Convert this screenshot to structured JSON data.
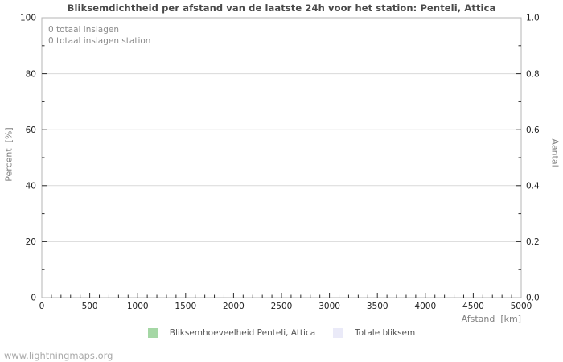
{
  "watermark": "www.lightningmaps.org",
  "chart_data": {
    "type": "bar",
    "title": "Bliksemdichtheid per afstand van de laatste 24h voor het station: Penteli, Attica",
    "xlabel": "Afstand  [km]",
    "ylabel_left": "Percent  [%]",
    "ylabel_right": "Aantal",
    "xlim": [
      0,
      5000
    ],
    "x_major_ticks": [
      0,
      500,
      1000,
      1500,
      2000,
      2500,
      3000,
      3500,
      4000,
      4500,
      5000
    ],
    "x_minor_step": 100,
    "ylim_left": [
      0,
      100
    ],
    "y_major_ticks_left": [
      0,
      20,
      40,
      60,
      80,
      100
    ],
    "y_minor_ticks_left": [
      10,
      30,
      50,
      70,
      90
    ],
    "ylim_right": [
      0,
      1
    ],
    "y_major_ticks_right": [
      0,
      0.2,
      0.4,
      0.6,
      0.8,
      1
    ],
    "y_major_tick_labels_right": [
      "0.0",
      "0.2",
      "0.4",
      "0.6",
      "0.8",
      "1.0"
    ],
    "y_minor_ticks_right": [
      0.1,
      0.3,
      0.5,
      0.7,
      0.9
    ],
    "grid": "horizontal-major",
    "legend_position": "bottom-center",
    "annotations": [
      "0 totaal inslagen",
      "0 totaal inslagen station"
    ],
    "categories": [],
    "series": [
      {
        "name": "Bliksemhoeveelheid Penteli, Attica",
        "values": []
      },
      {
        "name": "Totale bliksem",
        "values": []
      }
    ],
    "totals": {
      "totaal_inslagen": 0,
      "totaal_inslagen_station": 0
    },
    "legend": [
      {
        "label": "Bliksemhoeveelheid Penteli, Attica",
        "color": "#a5d7a5"
      },
      {
        "label": "Totale bliksem",
        "color": "#eaeaf8"
      }
    ],
    "colors": {
      "border": "#b4b4b4",
      "gridline": "#d9d9d9",
      "tick": "#2b2b2b",
      "tick_label": "#1f1f1f",
      "title": "#4a4a4a",
      "axis_label": "#808080",
      "annotation": "#8a8a8a",
      "watermark": "#a9a9a9",
      "background": "#ffffff"
    }
  }
}
